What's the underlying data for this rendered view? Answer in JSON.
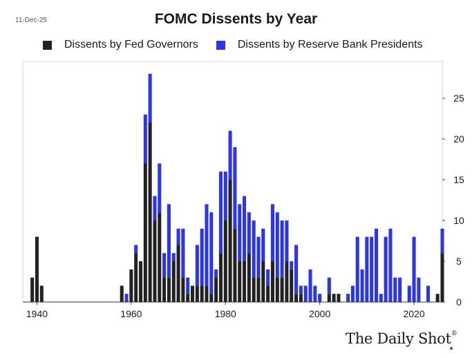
{
  "date_stamp": "11-Dec-25",
  "brand": {
    "name": "The Daily Shot",
    "mark": "®"
  },
  "chart_data": {
    "type": "bar",
    "stacked": true,
    "title": "FOMC Dissents by Year",
    "xlabel": "",
    "ylabel": "",
    "xlim": [
      1937,
      2026
    ],
    "ylim": [
      0,
      29.5
    ],
    "x_ticks": [
      1940,
      1960,
      1980,
      2000,
      2020
    ],
    "y_ticks": [
      0,
      5,
      10,
      15,
      20,
      25
    ],
    "y_axis_side": "right",
    "legend_position": "top",
    "x": [
      1939,
      1940,
      1941,
      1958,
      1959,
      1960,
      1961,
      1962,
      1963,
      1964,
      1965,
      1966,
      1967,
      1968,
      1969,
      1970,
      1971,
      1972,
      1973,
      1974,
      1975,
      1976,
      1977,
      1978,
      1979,
      1980,
      1981,
      1982,
      1983,
      1984,
      1985,
      1986,
      1987,
      1988,
      1989,
      1990,
      1991,
      1992,
      1993,
      1994,
      1995,
      1996,
      1997,
      1998,
      1999,
      2000,
      2002,
      2003,
      2004,
      2006,
      2007,
      2008,
      2009,
      2010,
      2011,
      2012,
      2013,
      2014,
      2015,
      2016,
      2017,
      2019,
      2020,
      2021,
      2023,
      2025,
      2026
    ],
    "series": [
      {
        "name": "Dissents by Fed Governors",
        "color": "#222222",
        "values": [
          3,
          8,
          2,
          2,
          0,
          4,
          6,
          5,
          17,
          22,
          10,
          11,
          3,
          3,
          5,
          7,
          3,
          1,
          2,
          2,
          2,
          2,
          1,
          3,
          6,
          10,
          15,
          9,
          5,
          5,
          6,
          3,
          3,
          5,
          2,
          5,
          3,
          3,
          5,
          4,
          1,
          1,
          0,
          0,
          0,
          0,
          1,
          1,
          1,
          0,
          0,
          0,
          0,
          0,
          0,
          0,
          0,
          0,
          0,
          0,
          0,
          0,
          0,
          0,
          0,
          1,
          6
        ]
      },
      {
        "name": "Dissents by Reserve Bank Presidents",
        "color": "#2b35ee",
        "values": [
          0,
          0,
          0,
          0,
          1,
          0,
          1,
          0,
          6,
          6,
          3,
          6,
          3,
          9,
          1,
          2,
          6,
          2,
          0,
          5,
          7,
          10,
          10,
          1,
          10,
          6,
          6,
          10,
          7,
          8,
          5,
          7,
          5,
          4,
          2,
          7,
          8,
          7,
          5,
          1,
          6,
          1,
          2,
          4,
          2,
          1,
          2,
          0,
          0,
          1,
          2,
          8,
          4,
          8,
          8,
          9,
          1,
          8,
          9,
          3,
          3,
          2,
          8,
          3,
          2,
          0,
          3
        ]
      }
    ]
  }
}
